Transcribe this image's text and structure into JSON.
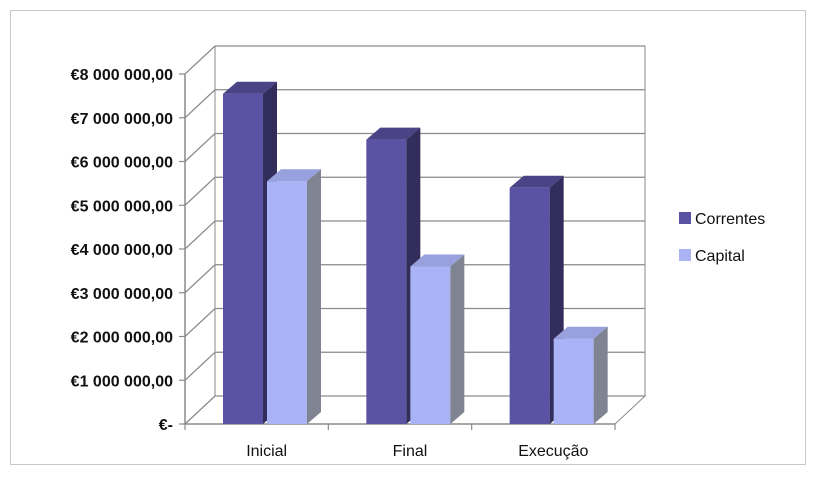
{
  "chart_data": {
    "type": "bar",
    "title": "",
    "xlabel": "",
    "ylabel": "",
    "categories": [
      "Inicial",
      "Final",
      "Execução"
    ],
    "series": [
      {
        "name": "Correntes",
        "values": [
          7550000,
          6500000,
          5400000
        ],
        "color": "#5a52a3"
      },
      {
        "name": "Capital",
        "values": [
          5550000,
          3600000,
          1950000
        ],
        "color": "#a9b3f5"
      }
    ],
    "ylim": [
      0,
      8000000
    ],
    "y_ticks": [
      {
        "value": 0,
        "label": "€-"
      },
      {
        "value": 1000000,
        "label": "€1 000 000,00"
      },
      {
        "value": 2000000,
        "label": "€2 000 000,00"
      },
      {
        "value": 3000000,
        "label": "€3 000 000,00"
      },
      {
        "value": 4000000,
        "label": "€4 000 000,00"
      },
      {
        "value": 5000000,
        "label": "€5 000 000,00"
      },
      {
        "value": 6000000,
        "label": "€6 000 000,00"
      },
      {
        "value": 7000000,
        "label": "€7 000 000,00"
      },
      {
        "value": 8000000,
        "label": "€8 000 000,00"
      }
    ],
    "grid": true,
    "legend_position": "right",
    "style": "3d-clustered"
  }
}
